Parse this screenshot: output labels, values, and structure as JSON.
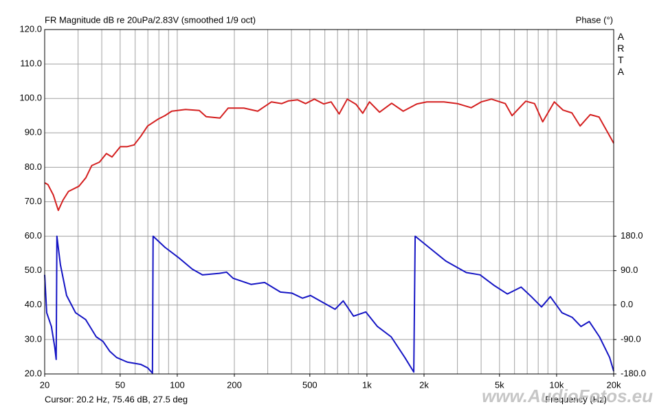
{
  "chart_data": {
    "type": "line",
    "title": "FR Magnitude dB re 20uPa/2.83V (smoothed 1/9 oct)",
    "y2_label": "Phase (°)",
    "logo": "ARTA",
    "cursor": "Cursor: 20.2 Hz, 75.46 dB, 27.5 deg",
    "x_label": "Frequency (Hz)",
    "watermark": "www.AudioFotos.eu",
    "xscale": "log",
    "xlim": [
      20,
      20000
    ],
    "xticks": [
      20,
      50,
      100,
      200,
      500,
      {
        "value": 1000,
        "label": "1k"
      },
      {
        "value": 2000,
        "label": "2k"
      },
      {
        "value": 5000,
        "label": "5k"
      },
      {
        "value": 10000,
        "label": "10k"
      },
      {
        "value": 20000,
        "label": "20k"
      }
    ],
    "xgrid": [
      20,
      30,
      40,
      50,
      60,
      70,
      80,
      90,
      100,
      200,
      300,
      400,
      500,
      600,
      700,
      800,
      900,
      1000,
      2000,
      3000,
      4000,
      5000,
      6000,
      7000,
      8000,
      9000,
      10000,
      20000
    ],
    "ylim": [
      20,
      120
    ],
    "yticks": [
      {
        "value": 20,
        "label": "20.0"
      },
      {
        "value": 30,
        "label": "30.0"
      },
      {
        "value": 40,
        "label": "40.0"
      },
      {
        "value": 50,
        "label": "50.0"
      },
      {
        "value": 60,
        "label": "60.0"
      },
      {
        "value": 70,
        "label": "70.0"
      },
      {
        "value": 80,
        "label": "80.0"
      },
      {
        "value": 90,
        "label": "90.0"
      },
      {
        "value": 100,
        "label": "100.0"
      },
      {
        "value": 110,
        "label": "110.0"
      },
      {
        "value": 120,
        "label": "120.0"
      }
    ],
    "y2lim": [
      -180,
      720
    ],
    "y2ticks": [
      {
        "value": -180,
        "label": "-180.0"
      },
      {
        "value": -90,
        "label": "-90.0"
      },
      {
        "value": 0,
        "label": "0.0"
      },
      {
        "value": 90,
        "label": "90.0"
      },
      {
        "value": 180,
        "label": "180.0"
      }
    ],
    "grid": true,
    "series": [
      {
        "color": "#d41f1f",
        "axis": "y",
        "x": [
          20,
          20.8,
          22.2,
          23.6,
          25,
          26.7,
          30.3,
          33,
          35.4,
          38.9,
          42.3,
          45.3,
          50.1,
          54.5,
          59.2,
          64.2,
          69.8,
          79.3,
          86.1,
          93.5,
          110.6,
          130.7,
          142.1,
          167.9,
          185.5,
          224.5,
          265.6,
          313.9,
          355.6,
          386.3,
          430.6,
          474.7,
          528.2,
          591.9,
          647.5,
          713.8,
          787.8,
          876.2,
          950.6,
          1031,
          1166,
          1350,
          1553,
          1832,
          2068,
          2547,
          3000,
          3543,
          4006,
          4534,
          5365,
          5822,
          6876,
          7650,
          8446,
          9724,
          10820,
          12040,
          13300,
          15040,
          16740,
          20000
        ],
        "values": [
          75.5,
          75,
          72,
          67.5,
          70.5,
          73,
          74.5,
          77,
          80.5,
          81.5,
          84,
          83,
          86,
          86,
          86.5,
          89,
          92,
          94,
          95,
          96.3,
          96.8,
          96.5,
          94.7,
          94.3,
          97.2,
          97.2,
          96.3,
          99,
          98.5,
          99.3,
          99.6,
          98.5,
          99.8,
          98.4,
          99,
          95.5,
          99.8,
          98.3,
          95.7,
          99,
          96,
          98.6,
          96.3,
          98.4,
          99,
          99,
          98.5,
          97.3,
          99,
          99.8,
          98.5,
          95,
          99.2,
          98.5,
          93.2,
          99,
          96.6,
          95.8,
          92,
          95.3,
          94.6,
          87
        ]
      },
      {
        "color": "#1414c4",
        "axis": "y2",
        "x": [
          20,
          20.5,
          21.7,
          22.6,
          23,
          23.2,
          24.2,
          26.1,
          29.1,
          32.9,
          37.4,
          40.6,
          44.1,
          47.9,
          54.5,
          64.2,
          69.8,
          74,
          74.6,
          86.1,
          101.6,
          120,
          135.8,
          167,
          182,
          197,
          245,
          289,
          350,
          403,
          457,
          504,
          585,
          679,
          750,
          850,
          987,
          1136,
          1342,
          1584,
          1766,
          1796,
          2120,
          2606,
          3342,
          3947,
          4661,
          5504,
          6500,
          7357,
          8326,
          9265,
          10670,
          12074,
          13440,
          14860,
          16829,
          19040,
          20000
        ],
        "values": [
          79,
          -20,
          -56,
          -110,
          -142,
          180,
          106,
          25,
          -20,
          -38,
          -83,
          -95,
          -121,
          -137,
          -149,
          -155,
          -164,
          -178,
          180,
          151,
          124,
          94,
          79,
          83,
          86,
          70,
          54,
          59,
          34,
          31,
          18,
          25,
          7,
          -11,
          11,
          -29,
          -18,
          -56,
          -83,
          -137,
          -175,
          180,
          151,
          115,
          85,
          79,
          52,
          29,
          47,
          22,
          -5,
          22,
          -20,
          -32,
          -56,
          -43,
          -83,
          -137,
          -173
        ]
      }
    ]
  }
}
